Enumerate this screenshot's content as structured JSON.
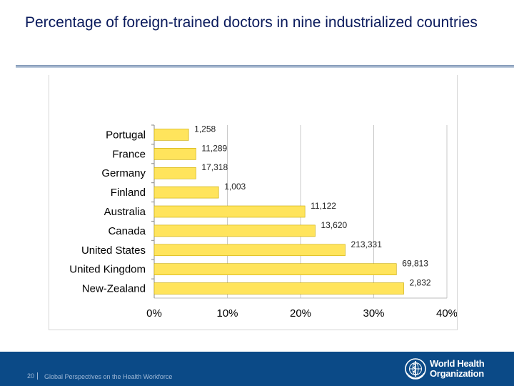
{
  "slide": {
    "title": "Percentage of foreign-trained doctors in nine industrialized countries"
  },
  "footer": {
    "page_number": "20",
    "text": "Global Perspectives on the Health Workforce",
    "logo_line1": "World Health",
    "logo_line2": "Organization"
  },
  "colors": {
    "bar_fill": "#ffe45c",
    "bar_stroke": "#c9a800",
    "grid": "#c8c8c8",
    "footer_bg": "#0b4a87",
    "title": "#0a1a5c"
  },
  "chart_data": {
    "type": "bar",
    "orientation": "horizontal",
    "title": "",
    "xlabel": "",
    "ylabel": "",
    "xlim": [
      0,
      40
    ],
    "x_ticks": [
      "0%",
      "10%",
      "20%",
      "30%",
      "40%"
    ],
    "grid": true,
    "categories": [
      "Portugal",
      "France",
      "Germany",
      "Finland",
      "Australia",
      "Canada",
      "United States",
      "United Kingdom",
      "New-Zealand"
    ],
    "values": [
      4.7,
      5.7,
      5.7,
      8.8,
      20.6,
      22.0,
      26.1,
      33.1,
      34.1
    ],
    "data_labels": [
      "1,258",
      "11,289",
      "17,318",
      "1,003",
      "11,122",
      "13,620",
      "213,331",
      "69,813",
      "2,832"
    ]
  }
}
